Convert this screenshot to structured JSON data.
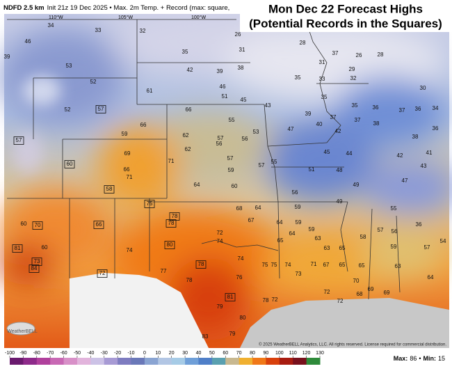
{
  "header": {
    "product": "NDFD 2.5 km",
    "info": "Init 21z 19 Dec 2025 • Max. 2m Temp. + Record (max: square,",
    "title_line1": "Mon Dec 22 Forecast Highs",
    "title_line2": "(Potential Records in the Squares)"
  },
  "longitudes": [
    "110°W",
    "105°W",
    "100°W"
  ],
  "map_values": [
    34,
    33,
    32,
    26,
    28,
    46,
    39,
    35,
    31,
    31,
    37,
    26,
    28,
    29,
    32,
    42,
    39,
    38,
    35,
    33,
    53,
    52,
    61,
    46,
    30,
    51,
    45,
    43,
    35,
    35,
    52,
    66,
    55,
    39,
    37,
    37,
    36,
    37,
    36,
    34,
    66,
    59,
    62,
    57,
    56,
    56,
    47,
    40,
    42,
    38,
    38,
    36,
    62,
    53,
    69,
    71,
    57,
    45,
    44,
    42,
    41,
    57,
    59,
    55,
    66,
    71,
    48,
    51,
    43,
    64,
    60,
    49,
    47,
    56,
    49,
    68,
    64,
    59,
    55,
    60,
    74,
    67,
    64,
    59,
    72,
    59,
    74,
    63,
    64,
    65,
    58,
    57,
    56,
    36,
    60,
    63,
    65,
    59,
    57,
    54,
    74,
    75,
    75,
    74,
    71,
    67,
    65,
    65,
    63,
    77,
    78,
    76,
    73,
    70,
    64,
    79,
    72,
    72,
    72,
    68,
    69,
    69,
    80,
    79,
    83,
    78
  ],
  "record_values": [
    57,
    57,
    60,
    58,
    70,
    66,
    81,
    73,
    84,
    75,
    78,
    78,
    80,
    78,
    81,
    72
  ],
  "colorbar": {
    "ticks": [
      -100,
      -90,
      -80,
      -70,
      -60,
      -50,
      -40,
      -30,
      -20,
      -10,
      0,
      10,
      20,
      30,
      40,
      50,
      60,
      70,
      80,
      90,
      100,
      110,
      120,
      130
    ],
    "colors": [
      "#6a1a6e",
      "#8e2a8a",
      "#b0409c",
      "#c868b4",
      "#d890c8",
      "#e2b4dc",
      "#ccc2e6",
      "#a79ad4",
      "#7e7cc0",
      "#6a78b8",
      "#8aa4d2",
      "#b2c6e4",
      "#a6cbe6",
      "#6f9fd8",
      "#4f7fc8",
      "#5aa0b0",
      "#c8b890",
      "#f0b030",
      "#f07818",
      "#d8400c",
      "#a81c10",
      "#78101c",
      "#2e8a3a"
    ]
  },
  "stats": {
    "max_label": "Max:",
    "max": 86.0,
    "min_label": "Min:",
    "min": 15.0
  },
  "copyright": "© 2025 WeatherBELL Analytics, LLC. All rights reserved. License required for commercial distribution.",
  "logo": "WeatherBELL"
}
